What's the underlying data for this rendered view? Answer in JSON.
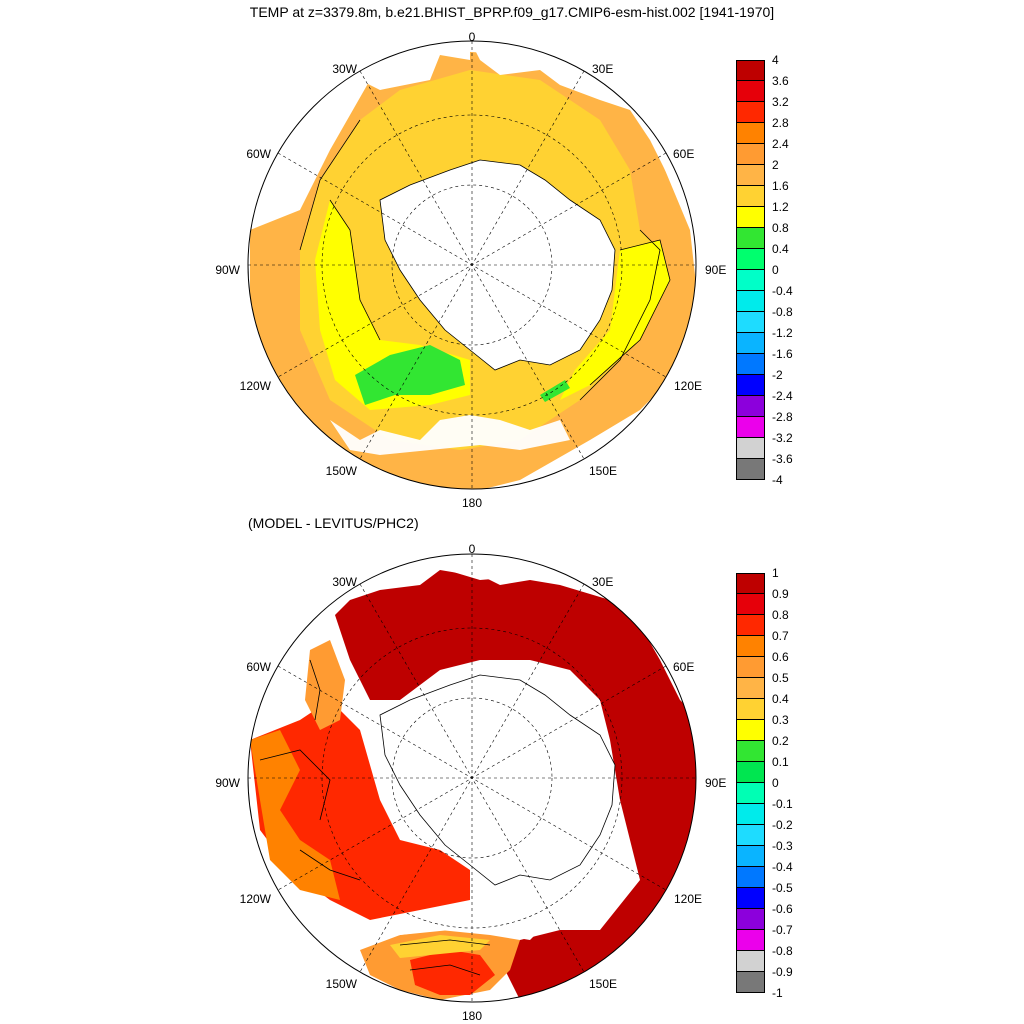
{
  "title": "TEMP at z=3379.8m, b.e21.BHIST_BPRP.f09_g17.CMIP6-esm-hist.002 [1941-1970]",
  "subtitle": "(MODEL - LEVITUS/PHC2)",
  "projection": "south-polar-stereographic",
  "lon_labels": {
    "deg0": "0",
    "e30": "30E",
    "e60": "60E",
    "e90": "90E",
    "e120": "120E",
    "e150": "150E",
    "deg180": "180",
    "w150": "150W",
    "w120": "120W",
    "w90": "90W",
    "w60": "60W",
    "w30": "30W"
  },
  "top_colorbar": {
    "labels": [
      "4",
      "3.6",
      "3.2",
      "2.8",
      "2.4",
      "2",
      "1.6",
      "1.2",
      "0.8",
      "0.4",
      "0",
      "-0.4",
      "-0.8",
      "-1.2",
      "-1.6",
      "-2",
      "-2.4",
      "-2.8",
      "-3.2",
      "-3.6",
      "-4"
    ],
    "colors": [
      "#be0000",
      "#e6000a",
      "#ff2800",
      "#ff8200",
      "#ff9b32",
      "#ffb446",
      "#ffd232",
      "#ffff00",
      "#32e632",
      "#00ff6e",
      "#00ffc8",
      "#00ebeb",
      "#1edcff",
      "#0ab4ff",
      "#0078ff",
      "#0000ff",
      "#8c00dc",
      "#eb00eb",
      "#d2d2d2",
      "#787878"
    ]
  },
  "bottom_colorbar": {
    "labels": [
      "1",
      "0.9",
      "0.8",
      "0.7",
      "0.6",
      "0.5",
      "0.4",
      "0.3",
      "0.2",
      "0.1",
      "0",
      "-0.1",
      "-0.2",
      "-0.3",
      "-0.4",
      "-0.5",
      "-0.6",
      "-0.7",
      "-0.8",
      "-0.9",
      "-1"
    ],
    "colors": [
      "#be0000",
      "#e6000a",
      "#ff2800",
      "#ff8200",
      "#ff9b32",
      "#ffb446",
      "#ffd232",
      "#ffff00",
      "#32e632",
      "#00e650",
      "#00ffb4",
      "#00ebeb",
      "#1edcff",
      "#0ab4ff",
      "#0078ff",
      "#0000ff",
      "#8c00dc",
      "#eb00eb",
      "#d2d2d2",
      "#787878"
    ]
  },
  "colors": {
    "top_dominant": "#ffd232",
    "top_lowlat": "#ffb446",
    "top_yellow": "#ffff00",
    "top_green": "#32e632",
    "bottom_dominant": "#be0000",
    "bottom_red": "#ff2800",
    "bottom_orange": "#ff8200",
    "land": "#ffffff",
    "coast": "#000000"
  }
}
